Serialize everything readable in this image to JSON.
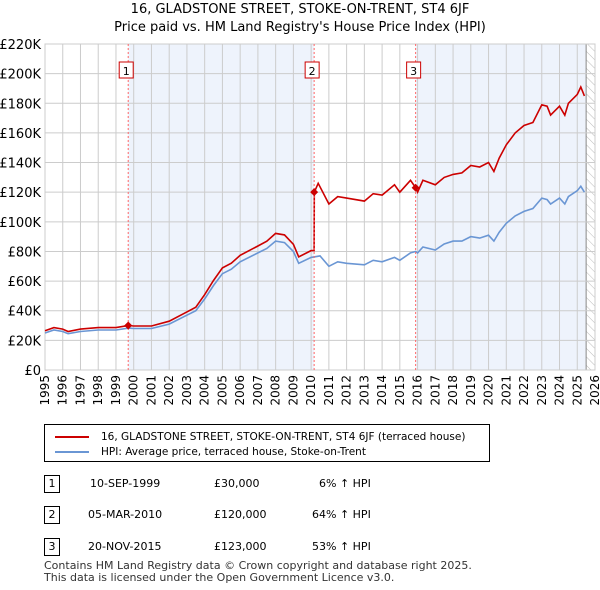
{
  "chart_data": {
    "type": "line",
    "title": "16, GLADSTONE STREET, STOKE-ON-TRENT, ST4 6JF",
    "subtitle": "Price paid vs. HM Land Registry's House Price Index (HPI)",
    "xlim": [
      1995,
      2026
    ],
    "ylim": [
      0,
      220000
    ],
    "yticks": [
      0,
      20000,
      40000,
      60000,
      80000,
      100000,
      120000,
      140000,
      160000,
      180000,
      200000,
      220000
    ],
    "ytick_labels": [
      "£0",
      "£20K",
      "£40K",
      "£60K",
      "£80K",
      "£100K",
      "£120K",
      "£140K",
      "£160K",
      "£180K",
      "£200K",
      "£220K"
    ],
    "xticks": [
      1995,
      1996,
      1997,
      1998,
      1999,
      2000,
      2001,
      2002,
      2003,
      2004,
      2005,
      2006,
      2007,
      2008,
      2009,
      2010,
      2011,
      2012,
      2013,
      2014,
      2015,
      2016,
      2017,
      2018,
      2019,
      2020,
      2021,
      2022,
      2023,
      2024,
      2025,
      2026
    ],
    "grid": true,
    "colors": {
      "property": "#cc0000",
      "hpi": "#6a96d4",
      "shade": "#eef3fc",
      "marker_line": "#ff6666"
    },
    "series": [
      {
        "name": "16, GLADSTONE STREET, STOKE-ON-TRENT, ST4 6JF (terraced house)",
        "x": [
          1995,
          1995.5,
          1996,
          1996.3,
          1997,
          1998,
          1999,
          1999.7,
          2000,
          2001,
          2002,
          2003,
          2003.5,
          2004,
          2004.5,
          2005,
          2005.5,
          2006,
          2007,
          2007.5,
          2008,
          2008.5,
          2009,
          2009.3,
          2010,
          2010.17,
          2010.18,
          2010.4,
          2011,
          2011.5,
          2012,
          2013,
          2013.5,
          2014,
          2014.7,
          2015,
          2015.6,
          2015.89,
          2016,
          2016.3,
          2017,
          2017.5,
          2018,
          2018.5,
          2019,
          2019.5,
          2020,
          2020.3,
          2020.6,
          2021,
          2021.5,
          2022,
          2022.5,
          2023,
          2023.3,
          2023.5,
          2024,
          2024.3,
          2024.5,
          2025,
          2025.2,
          2025.4
        ],
        "values": [
          26500,
          28600,
          27600,
          26000,
          27600,
          28600,
          28600,
          30000,
          29700,
          29700,
          32900,
          39200,
          42400,
          50900,
          60400,
          68900,
          72100,
          77400,
          83700,
          86900,
          92200,
          91200,
          84800,
          76300,
          80600,
          80600,
          120000,
          126000,
          112000,
          117000,
          116000,
          114000,
          119000,
          118000,
          125000,
          120000,
          128000,
          123000,
          120000,
          128000,
          125000,
          130000,
          132000,
          133000,
          138000,
          137000,
          140000,
          134000,
          143000,
          152000,
          160000,
          165000,
          167000,
          179000,
          178000,
          172000,
          178000,
          172000,
          180000,
          186000,
          191000,
          185000
        ]
      },
      {
        "name": "HPI: Average price, terraced house, Stoke-on-Trent",
        "x": [
          1995,
          1995.5,
          1996,
          1996.3,
          1997,
          1998,
          1999,
          1999.7,
          2000,
          2001,
          2002,
          2003,
          2003.5,
          2004,
          2004.5,
          2005,
          2005.5,
          2006,
          2007,
          2007.5,
          2008,
          2008.5,
          2009,
          2009.3,
          2010,
          2010.5,
          2011,
          2011.5,
          2012,
          2013,
          2013.5,
          2014,
          2014.7,
          2015,
          2015.6,
          2015.89,
          2016,
          2016.3,
          2017,
          2017.5,
          2018,
          2018.5,
          2019,
          2019.5,
          2020,
          2020.3,
          2020.6,
          2021,
          2021.5,
          2022,
          2022.5,
          2023,
          2023.3,
          2023.5,
          2024,
          2024.3,
          2024.5,
          2025,
          2025.2,
          2025.4
        ],
        "values": [
          25000,
          27000,
          26000,
          24500,
          26000,
          27000,
          27000,
          28300,
          28000,
          28000,
          31000,
          37000,
          40000,
          48000,
          57000,
          65000,
          68000,
          73000,
          79000,
          82000,
          87000,
          86000,
          80000,
          72000,
          76000,
          77000,
          70000,
          73000,
          72000,
          71000,
          74000,
          73000,
          76000,
          74000,
          79000,
          80000,
          79000,
          83000,
          81000,
          85000,
          87000,
          87000,
          90000,
          89000,
          91000,
          87000,
          93000,
          99000,
          104000,
          107000,
          109000,
          116000,
          115000,
          112000,
          116000,
          112000,
          117000,
          121000,
          124000,
          120000
        ]
      }
    ],
    "sales": [
      {
        "label": "1",
        "x": 1999.69,
        "value": 30000
      },
      {
        "label": "2",
        "x": 2010.17,
        "value": 120000
      },
      {
        "label": "3",
        "x": 2015.89,
        "value": 123000
      }
    ],
    "hatch_from": 2025.5
  },
  "legend": {
    "property": "16, GLADSTONE STREET, STOKE-ON-TRENT, ST4 6JF (terraced house)",
    "hpi": "HPI: Average price, terraced house, Stoke-on-Trent"
  },
  "table": [
    {
      "num": "1",
      "date": "10-SEP-1999",
      "price": "£30,000",
      "change": "6% ↑ HPI"
    },
    {
      "num": "2",
      "date": "05-MAR-2010",
      "price": "£120,000",
      "change": "64% ↑ HPI"
    },
    {
      "num": "3",
      "date": "20-NOV-2015",
      "price": "£123,000",
      "change": "53% ↑ HPI"
    }
  ],
  "footer": [
    "Contains HM Land Registry data © Crown copyright and database right 2025.",
    "This data is licensed under the Open Government Licence v3.0."
  ]
}
